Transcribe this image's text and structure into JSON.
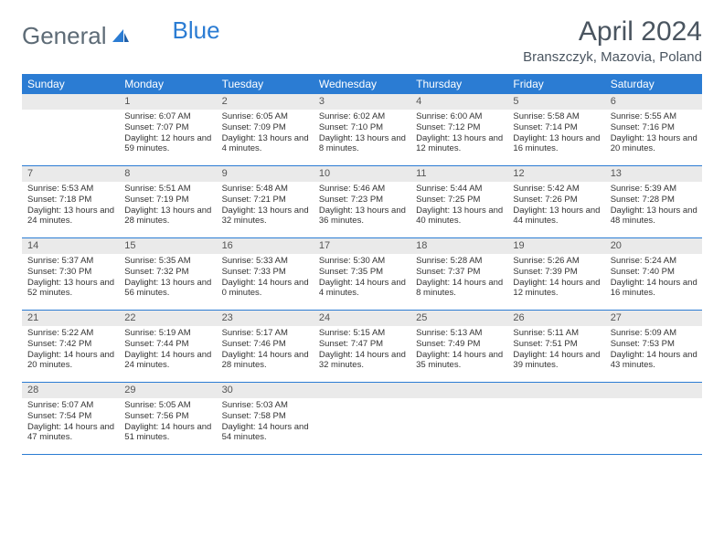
{
  "logo": {
    "part1": "General",
    "part2": "Blue"
  },
  "title": "April 2024",
  "location": "Branszczyk, Mazovia, Poland",
  "colors": {
    "header_bg": "#2b7cd3",
    "header_text": "#ffffff",
    "daynum_bg": "#eaeaea",
    "text": "#333333",
    "rule": "#2b7cd3",
    "logo_gray": "#5d6b76",
    "logo_blue": "#2b7cd3"
  },
  "day_names": [
    "Sunday",
    "Monday",
    "Tuesday",
    "Wednesday",
    "Thursday",
    "Friday",
    "Saturday"
  ],
  "labels": {
    "sunrise": "Sunrise:",
    "sunset": "Sunset:",
    "daylight": "Daylight:"
  },
  "weeks": [
    [
      {
        "day": ""
      },
      {
        "day": "1",
        "sunrise": "6:07 AM",
        "sunset": "7:07 PM",
        "daylight": "12 hours and 59 minutes."
      },
      {
        "day": "2",
        "sunrise": "6:05 AM",
        "sunset": "7:09 PM",
        "daylight": "13 hours and 4 minutes."
      },
      {
        "day": "3",
        "sunrise": "6:02 AM",
        "sunset": "7:10 PM",
        "daylight": "13 hours and 8 minutes."
      },
      {
        "day": "4",
        "sunrise": "6:00 AM",
        "sunset": "7:12 PM",
        "daylight": "13 hours and 12 minutes."
      },
      {
        "day": "5",
        "sunrise": "5:58 AM",
        "sunset": "7:14 PM",
        "daylight": "13 hours and 16 minutes."
      },
      {
        "day": "6",
        "sunrise": "5:55 AM",
        "sunset": "7:16 PM",
        "daylight": "13 hours and 20 minutes."
      }
    ],
    [
      {
        "day": "7",
        "sunrise": "5:53 AM",
        "sunset": "7:18 PM",
        "daylight": "13 hours and 24 minutes."
      },
      {
        "day": "8",
        "sunrise": "5:51 AM",
        "sunset": "7:19 PM",
        "daylight": "13 hours and 28 minutes."
      },
      {
        "day": "9",
        "sunrise": "5:48 AM",
        "sunset": "7:21 PM",
        "daylight": "13 hours and 32 minutes."
      },
      {
        "day": "10",
        "sunrise": "5:46 AM",
        "sunset": "7:23 PM",
        "daylight": "13 hours and 36 minutes."
      },
      {
        "day": "11",
        "sunrise": "5:44 AM",
        "sunset": "7:25 PM",
        "daylight": "13 hours and 40 minutes."
      },
      {
        "day": "12",
        "sunrise": "5:42 AM",
        "sunset": "7:26 PM",
        "daylight": "13 hours and 44 minutes."
      },
      {
        "day": "13",
        "sunrise": "5:39 AM",
        "sunset": "7:28 PM",
        "daylight": "13 hours and 48 minutes."
      }
    ],
    [
      {
        "day": "14",
        "sunrise": "5:37 AM",
        "sunset": "7:30 PM",
        "daylight": "13 hours and 52 minutes."
      },
      {
        "day": "15",
        "sunrise": "5:35 AM",
        "sunset": "7:32 PM",
        "daylight": "13 hours and 56 minutes."
      },
      {
        "day": "16",
        "sunrise": "5:33 AM",
        "sunset": "7:33 PM",
        "daylight": "14 hours and 0 minutes."
      },
      {
        "day": "17",
        "sunrise": "5:30 AM",
        "sunset": "7:35 PM",
        "daylight": "14 hours and 4 minutes."
      },
      {
        "day": "18",
        "sunrise": "5:28 AM",
        "sunset": "7:37 PM",
        "daylight": "14 hours and 8 minutes."
      },
      {
        "day": "19",
        "sunrise": "5:26 AM",
        "sunset": "7:39 PM",
        "daylight": "14 hours and 12 minutes."
      },
      {
        "day": "20",
        "sunrise": "5:24 AM",
        "sunset": "7:40 PM",
        "daylight": "14 hours and 16 minutes."
      }
    ],
    [
      {
        "day": "21",
        "sunrise": "5:22 AM",
        "sunset": "7:42 PM",
        "daylight": "14 hours and 20 minutes."
      },
      {
        "day": "22",
        "sunrise": "5:19 AM",
        "sunset": "7:44 PM",
        "daylight": "14 hours and 24 minutes."
      },
      {
        "day": "23",
        "sunrise": "5:17 AM",
        "sunset": "7:46 PM",
        "daylight": "14 hours and 28 minutes."
      },
      {
        "day": "24",
        "sunrise": "5:15 AM",
        "sunset": "7:47 PM",
        "daylight": "14 hours and 32 minutes."
      },
      {
        "day": "25",
        "sunrise": "5:13 AM",
        "sunset": "7:49 PM",
        "daylight": "14 hours and 35 minutes."
      },
      {
        "day": "26",
        "sunrise": "5:11 AM",
        "sunset": "7:51 PM",
        "daylight": "14 hours and 39 minutes."
      },
      {
        "day": "27",
        "sunrise": "5:09 AM",
        "sunset": "7:53 PM",
        "daylight": "14 hours and 43 minutes."
      }
    ],
    [
      {
        "day": "28",
        "sunrise": "5:07 AM",
        "sunset": "7:54 PM",
        "daylight": "14 hours and 47 minutes."
      },
      {
        "day": "29",
        "sunrise": "5:05 AM",
        "sunset": "7:56 PM",
        "daylight": "14 hours and 51 minutes."
      },
      {
        "day": "30",
        "sunrise": "5:03 AM",
        "sunset": "7:58 PM",
        "daylight": "14 hours and 54 minutes."
      },
      {
        "day": ""
      },
      {
        "day": ""
      },
      {
        "day": ""
      },
      {
        "day": ""
      }
    ]
  ]
}
